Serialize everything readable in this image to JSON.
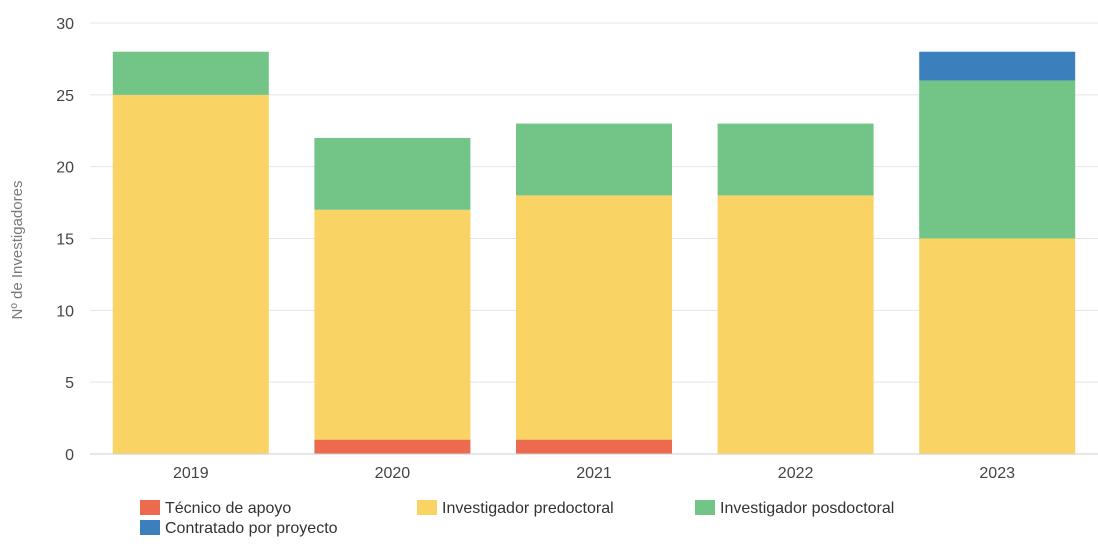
{
  "chart_data": {
    "type": "bar",
    "stacked": true,
    "categories": [
      "2019",
      "2020",
      "2021",
      "2022",
      "2023"
    ],
    "series": [
      {
        "name": "Técnico de apoyo",
        "color": "#ec6a4d",
        "values": [
          0,
          1,
          1,
          0,
          0
        ]
      },
      {
        "name": "Investigador predoctoral",
        "color": "#f9d464",
        "values": [
          25,
          16,
          17,
          18,
          15
        ]
      },
      {
        "name": "Investigador posdoctoral",
        "color": "#72c487",
        "values": [
          3,
          5,
          5,
          5,
          11
        ]
      },
      {
        "name": "Contratado por proyecto",
        "color": "#3b7fbd",
        "values": [
          0,
          0,
          0,
          0,
          2
        ]
      }
    ],
    "ylabel": "Nº de Investigadores",
    "xlabel": "",
    "ylim": [
      0,
      30
    ],
    "yticks": [
      "0",
      "5",
      "10",
      "15",
      "20",
      "25",
      "30"
    ],
    "grid": true,
    "legend_position": "bottom-left"
  }
}
